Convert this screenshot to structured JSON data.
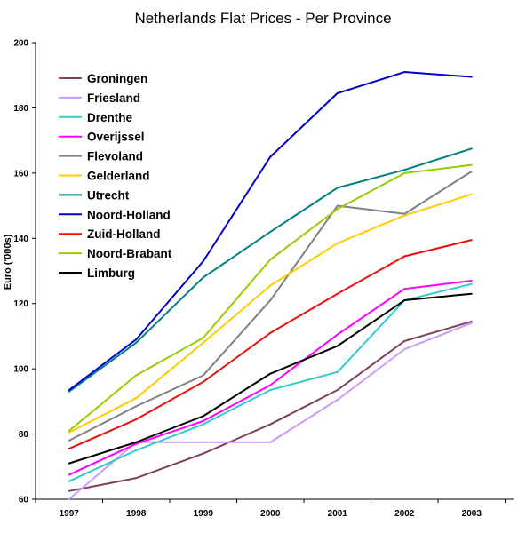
{
  "chart_data": {
    "type": "line",
    "title": "Netherlands Flat Prices - Per Province",
    "xlabel": "",
    "ylabel": "Euro ('000s)",
    "categories": [
      "1997",
      "1998",
      "1999",
      "2000",
      "2001",
      "2002",
      "2003"
    ],
    "ylim": [
      60,
      200
    ],
    "yticks": [
      "60",
      "80",
      "100",
      "120",
      "140",
      "160",
      "180",
      "200"
    ],
    "grid": false,
    "legend_position": "top-left",
    "series": [
      {
        "name": "Groningen",
        "color": "#7f3f5f",
        "values": [
          62.5,
          66.5,
          74,
          83,
          93.5,
          108.5,
          114.5
        ]
      },
      {
        "name": "Friesland",
        "color": "#cc99ff",
        "values": [
          58.5,
          77.5,
          77.5,
          77.5,
          90.5,
          106,
          114
        ]
      },
      {
        "name": "Drenthe",
        "color": "#33cccc",
        "values": [
          65.5,
          75,
          83,
          93.5,
          99,
          121,
          126
        ]
      },
      {
        "name": "Overijssel",
        "color": "#ff00ff",
        "values": [
          67.5,
          77,
          84,
          95,
          110.5,
          124.5,
          127
        ]
      },
      {
        "name": "Flevoland",
        "color": "#808080",
        "values": [
          78,
          88.5,
          98,
          121,
          150,
          147.5,
          160.5
        ]
      },
      {
        "name": "Gelderland",
        "color": "#ffcc00",
        "values": [
          80.5,
          91,
          108,
          125.5,
          138.5,
          147,
          153.5
        ]
      },
      {
        "name": "Utrecht",
        "color": "#008080",
        "values": [
          93,
          108,
          128,
          142,
          155.5,
          161,
          167.5
        ]
      },
      {
        "name": "Noord-Holland",
        "color": "#0000cc",
        "values": [
          93.5,
          109,
          133,
          165,
          184.5,
          191,
          189.5
        ]
      },
      {
        "name": "Zuid-Holland",
        "color": "#e8120c",
        "values": [
          75.5,
          84.5,
          96,
          111,
          123,
          134.5,
          139.5
        ]
      },
      {
        "name": "Noord-Brabant",
        "color": "#99cc00",
        "values": [
          81,
          98,
          109.5,
          133.5,
          149,
          160,
          162.5
        ]
      },
      {
        "name": "Limburg",
        "color": "#000000",
        "values": [
          71,
          77.5,
          85.5,
          98.5,
          107,
          121,
          123
        ]
      }
    ]
  }
}
